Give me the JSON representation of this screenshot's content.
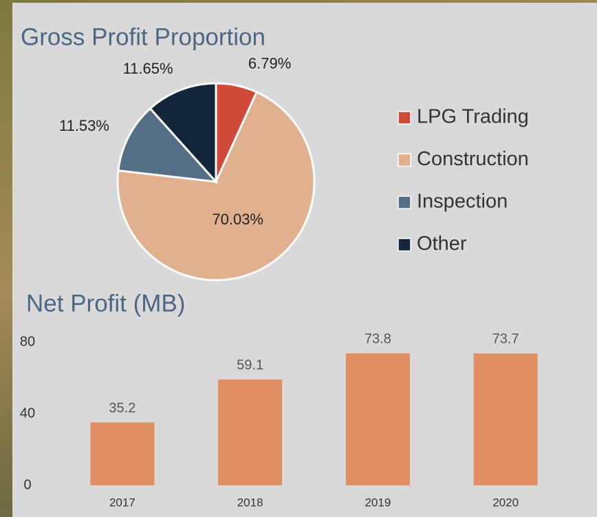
{
  "chart_data": [
    {
      "type": "pie",
      "title": "Gross Profit Proportion",
      "categories": [
        "LPG Trading",
        "Construction",
        "Inspection",
        "Other"
      ],
      "values": [
        6.79,
        70.03,
        11.53,
        11.65
      ],
      "value_labels": [
        "6.79%",
        "70.03%",
        "11.53%",
        "11.65%"
      ],
      "colors": [
        "#d04a3a",
        "#e0b08f",
        "#546e85",
        "#12263a"
      ],
      "legend": "right"
    },
    {
      "type": "bar",
      "title": "Net Profit (MB)",
      "categories": [
        "2017",
        "2018",
        "2019",
        "2020"
      ],
      "values": [
        35.2,
        59.1,
        73.8,
        73.7
      ],
      "color": "#e08f63",
      "ylim": [
        0,
        80
      ],
      "yticks": [
        0,
        40,
        80
      ],
      "grid": false
    }
  ]
}
